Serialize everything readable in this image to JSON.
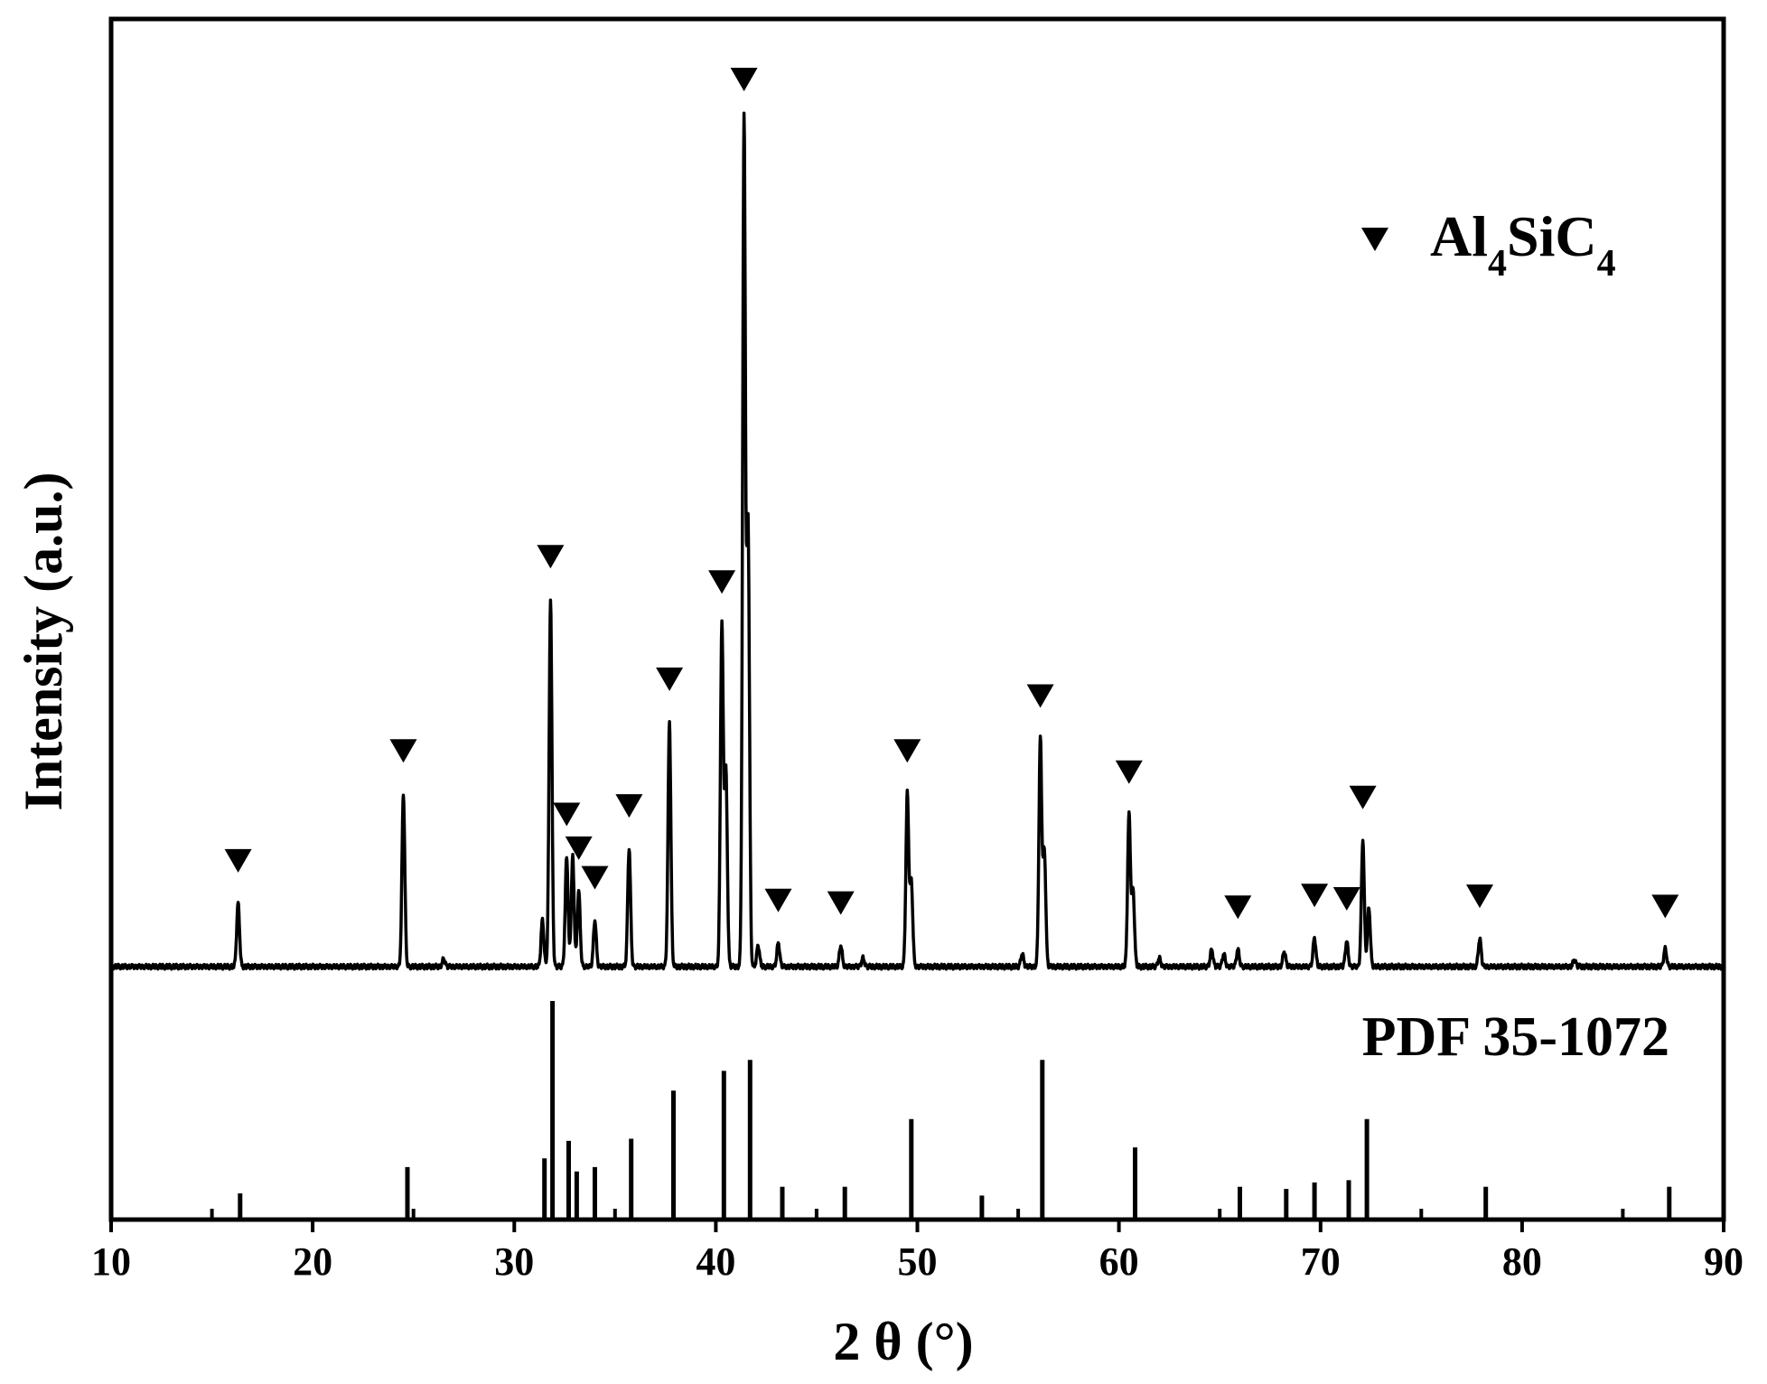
{
  "chart_data": {
    "type": "line",
    "xlabel": "2 θ (°)",
    "ylabel": "Intensity (a.u.)",
    "xlim": [
      10,
      90
    ],
    "xticks": [
      10,
      20,
      30,
      40,
      50,
      60,
      70,
      80,
      90
    ],
    "grid": false,
    "legend": {
      "marker": "inverted-triangle",
      "label_main": "Al",
      "label_sub1": "4",
      "label_mid": "SiC",
      "label_sub2": "4",
      "placement": "top-right"
    },
    "reference_label": "PDF 35-1072",
    "yunits": "relative intensity (a.u.), pattern top 0–100, reference panel 0–100",
    "pattern_peaks": [
      {
        "x": 16.3,
        "y": 7.5,
        "marked": true
      },
      {
        "x": 24.5,
        "y": 20.5,
        "marked": true
      },
      {
        "x": 26.5,
        "y": 0.9,
        "marked": false
      },
      {
        "x": 31.4,
        "y": 5.5,
        "marked": false
      },
      {
        "x": 31.8,
        "y": 43.5,
        "marked": true
      },
      {
        "x": 32.6,
        "y": 13.0,
        "marked": true
      },
      {
        "x": 32.9,
        "y": 13.0,
        "marked": false
      },
      {
        "x": 33.2,
        "y": 9.0,
        "marked": true
      },
      {
        "x": 34.0,
        "y": 5.5,
        "marked": true
      },
      {
        "x": 35.7,
        "y": 14.0,
        "marked": true
      },
      {
        "x": 37.7,
        "y": 29.0,
        "marked": true
      },
      {
        "x": 40.3,
        "y": 40.5,
        "marked": true
      },
      {
        "x": 40.5,
        "y": 23.0,
        "marked": false
      },
      {
        "x": 41.4,
        "y": 100.0,
        "marked": true
      },
      {
        "x": 41.6,
        "y": 52.0,
        "marked": false
      },
      {
        "x": 42.1,
        "y": 2.5,
        "marked": false
      },
      {
        "x": 43.1,
        "y": 2.8,
        "marked": true
      },
      {
        "x": 46.2,
        "y": 2.5,
        "marked": true
      },
      {
        "x": 47.3,
        "y": 1.0,
        "marked": false
      },
      {
        "x": 49.5,
        "y": 20.5,
        "marked": true
      },
      {
        "x": 49.7,
        "y": 10.0,
        "marked": false
      },
      {
        "x": 55.2,
        "y": 1.5,
        "marked": false
      },
      {
        "x": 56.1,
        "y": 27.0,
        "marked": true
      },
      {
        "x": 56.3,
        "y": 13.5,
        "marked": false
      },
      {
        "x": 60.5,
        "y": 18.0,
        "marked": true
      },
      {
        "x": 60.7,
        "y": 9.0,
        "marked": false
      },
      {
        "x": 62.0,
        "y": 1.0,
        "marked": false
      },
      {
        "x": 64.6,
        "y": 2.0,
        "marked": false
      },
      {
        "x": 65.2,
        "y": 1.5,
        "marked": false
      },
      {
        "x": 65.9,
        "y": 2.0,
        "marked": true
      },
      {
        "x": 68.2,
        "y": 1.8,
        "marked": false
      },
      {
        "x": 69.7,
        "y": 3.4,
        "marked": true
      },
      {
        "x": 71.3,
        "y": 3.0,
        "marked": true
      },
      {
        "x": 72.1,
        "y": 15.0,
        "marked": true
      },
      {
        "x": 72.4,
        "y": 7.0,
        "marked": false
      },
      {
        "x": 77.9,
        "y": 3.3,
        "marked": true
      },
      {
        "x": 82.6,
        "y": 0.8,
        "marked": false
      },
      {
        "x": 87.1,
        "y": 2.1,
        "marked": true
      }
    ],
    "reference_peaks": [
      {
        "x": 16.4,
        "y": 12
      },
      {
        "x": 24.7,
        "y": 24
      },
      {
        "x": 31.5,
        "y": 28
      },
      {
        "x": 31.9,
        "y": 100
      },
      {
        "x": 32.7,
        "y": 36
      },
      {
        "x": 33.1,
        "y": 22
      },
      {
        "x": 34.0,
        "y": 24
      },
      {
        "x": 35.8,
        "y": 37
      },
      {
        "x": 37.9,
        "y": 59
      },
      {
        "x": 40.4,
        "y": 68
      },
      {
        "x": 41.7,
        "y": 73
      },
      {
        "x": 43.3,
        "y": 15
      },
      {
        "x": 46.4,
        "y": 15
      },
      {
        "x": 49.7,
        "y": 46
      },
      {
        "x": 53.2,
        "y": 11
      },
      {
        "x": 56.2,
        "y": 73
      },
      {
        "x": 60.8,
        "y": 33
      },
      {
        "x": 66.0,
        "y": 15
      },
      {
        "x": 68.3,
        "y": 14
      },
      {
        "x": 69.7,
        "y": 17
      },
      {
        "x": 71.4,
        "y": 18
      },
      {
        "x": 72.3,
        "y": 46
      },
      {
        "x": 78.2,
        "y": 15
      },
      {
        "x": 87.3,
        "y": 15
      }
    ]
  }
}
